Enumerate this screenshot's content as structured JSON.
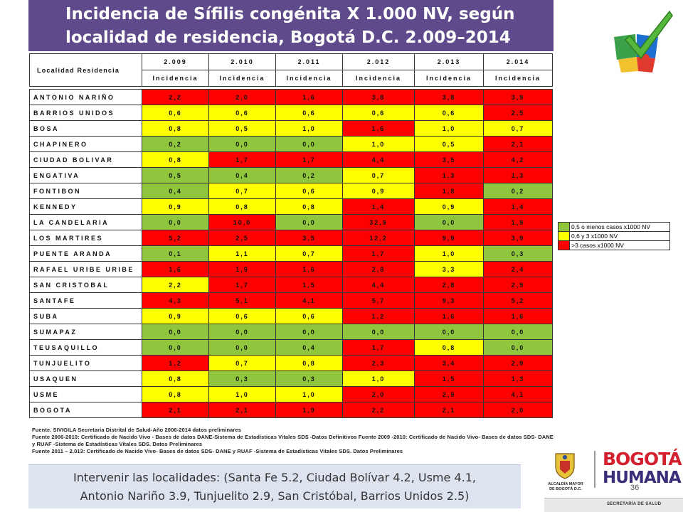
{
  "title": {
    "line1": "Incidencia de Sífilis congénita X 1.000 NV, según",
    "line2": "localidad de residencia, Bogotá D.C. 2.009–2014"
  },
  "colors": {
    "green": "#8fc63e",
    "yellow": "#ffff00",
    "red": "#ff0000",
    "title_bg": "#5f4b8b"
  },
  "icons": [
    "puzzle-check-icon",
    "bogota-crest-icon"
  ],
  "table": {
    "corner_header": "Localidad Residencia",
    "years": [
      "2.009",
      "2.010",
      "2.011",
      "2.012",
      "2.013",
      "2.014"
    ],
    "subheader": "Incidencia",
    "rows": [
      {
        "name": "ANTONIO NARIÑO",
        "values": [
          "2,2",
          "2,0",
          "1,6",
          "3,8",
          "3,8",
          "3,9"
        ],
        "levels": [
          "r",
          "r",
          "r",
          "r",
          "r",
          "r"
        ]
      },
      {
        "name": "BARRIOS UNIDOS",
        "values": [
          "0,6",
          "0,6",
          "0,6",
          "0,6",
          "0,6",
          "2,5"
        ],
        "levels": [
          "y",
          "y",
          "y",
          "y",
          "y",
          "r"
        ]
      },
      {
        "name": "BOSA",
        "values": [
          "0,8",
          "0,5",
          "1,0",
          "1,6",
          "1,0",
          "0,7"
        ],
        "levels": [
          "y",
          "y",
          "y",
          "r",
          "y",
          "y"
        ]
      },
      {
        "name": "CHAPINERO",
        "values": [
          "0,2",
          "0,0",
          "0,0",
          "1,0",
          "0,5",
          "2,1"
        ],
        "levels": [
          "g",
          "g",
          "g",
          "y",
          "y",
          "r"
        ]
      },
      {
        "name": "CIUDAD BOLIVAR",
        "values": [
          "0,8",
          "1,7",
          "1,7",
          "4,4",
          "3,5",
          "4,2"
        ],
        "levels": [
          "y",
          "r",
          "r",
          "r",
          "r",
          "r"
        ]
      },
      {
        "name": "ENGATIVA",
        "values": [
          "0,5",
          "0,4",
          "0,2",
          "0,7",
          "1,3",
          "1,3"
        ],
        "levels": [
          "g",
          "g",
          "g",
          "y",
          "r",
          "r"
        ]
      },
      {
        "name": "FONTIBON",
        "values": [
          "0,4",
          "0,7",
          "0,6",
          "0,9",
          "1,8",
          "0,2"
        ],
        "levels": [
          "g",
          "y",
          "y",
          "y",
          "r",
          "g"
        ]
      },
      {
        "name": "KENNEDY",
        "values": [
          "0,9",
          "0,8",
          "0,8",
          "1,4",
          "0,9",
          "1,4"
        ],
        "levels": [
          "y",
          "y",
          "y",
          "r",
          "y",
          "r"
        ]
      },
      {
        "name": "LA CANDELARIA",
        "values": [
          "0,0",
          "10,0",
          "0,0",
          "32,9",
          "0,0",
          "1,9"
        ],
        "levels": [
          "g",
          "r",
          "g",
          "r",
          "g",
          "r"
        ]
      },
      {
        "name": "LOS MARTIRES",
        "values": [
          "5,2",
          "2,5",
          "3,5",
          "12,2",
          "9,9",
          "3,9"
        ],
        "levels": [
          "r",
          "r",
          "r",
          "r",
          "r",
          "r"
        ]
      },
      {
        "name": "PUENTE ARANDA",
        "values": [
          "0,1",
          "1,1",
          "0,7",
          "1,7",
          "1,0",
          "0,3"
        ],
        "levels": [
          "g",
          "y",
          "y",
          "r",
          "y",
          "g"
        ]
      },
      {
        "name": "RAFAEL URIBE URIBE",
        "values": [
          "1,6",
          "1,9",
          "1,6",
          "2,8",
          "3,3",
          "2,4"
        ],
        "levels": [
          "r",
          "r",
          "r",
          "r",
          "y",
          "r"
        ]
      },
      {
        "name": "SAN CRISTOBAL",
        "values": [
          "2,2",
          "1,7",
          "1,5",
          "4,4",
          "2,8",
          "2,9"
        ],
        "levels": [
          "y",
          "r",
          "r",
          "r",
          "r",
          "r"
        ]
      },
      {
        "name": "SANTAFE",
        "values": [
          "4,3",
          "5,1",
          "4,1",
          "5,7",
          "9,3",
          "5,2"
        ],
        "levels": [
          "r",
          "r",
          "r",
          "r",
          "r",
          "r"
        ]
      },
      {
        "name": "SUBA",
        "values": [
          "0,9",
          "0,6",
          "0,6",
          "1,2",
          "1,6",
          "1,6"
        ],
        "levels": [
          "y",
          "y",
          "y",
          "r",
          "r",
          "r"
        ]
      },
      {
        "name": "SUMAPAZ",
        "values": [
          "0,0",
          "0,0",
          "0,0",
          "0,0",
          "0,0",
          "0,0"
        ],
        "levels": [
          "g",
          "g",
          "g",
          "g",
          "g",
          "g"
        ]
      },
      {
        "name": "TEUSAQUILLO",
        "values": [
          "0,0",
          "0,0",
          "0,4",
          "1,7",
          "0,8",
          "0,0"
        ],
        "levels": [
          "g",
          "g",
          "g",
          "r",
          "y",
          "g"
        ]
      },
      {
        "name": "TUNJUELITO",
        "values": [
          "1,2",
          "0,7",
          "0,8",
          "2,3",
          "3,4",
          "2,9"
        ],
        "levels": [
          "r",
          "y",
          "y",
          "r",
          "r",
          "r"
        ]
      },
      {
        "name": "USAQUEN",
        "values": [
          "0,8",
          "0,3",
          "0,3",
          "1,0",
          "1,5",
          "1,3"
        ],
        "levels": [
          "y",
          "g",
          "g",
          "y",
          "r",
          "r"
        ]
      },
      {
        "name": "USME",
        "values": [
          "0,8",
          "1,0",
          "1,0",
          "2,0",
          "2,9",
          "4,1"
        ],
        "levels": [
          "y",
          "y",
          "y",
          "r",
          "r",
          "r"
        ]
      },
      {
        "name": "BOGOTA",
        "values": [
          "2,1",
          "2,1",
          "1,9",
          "2,2",
          "2,1",
          "2,0"
        ],
        "levels": [
          "r",
          "r",
          "r",
          "r",
          "r",
          "r"
        ]
      }
    ]
  },
  "legend": [
    {
      "label": "0,5 o menos casos x1000 NV",
      "level": "g"
    },
    {
      "label": "0,6 y 3 x1000 NV",
      "level": "y"
    },
    {
      "label": ">3 casos x1000 NV",
      "level": "r"
    }
  ],
  "sources": [
    "Fuente. SIVIGILA Secretaria Distrital de Salud-Año 2006-2014 datos preliminares",
    " Fuente 2006-2010: Certificado de Nacido Vivo - Bases de datos DANE-Sistema de Estadísticas Vitales SDS -Datos Definitivos  Fuente 2009 -2010: Certificado de Nacido Vivo- Bases de datos SDS- DANE",
    "y RUAF -Sistema de Estadísticas Vitales SDS.  Datos  Preliminares",
    " Fuente 2011 – 2.013: Certificado de Nacido Vivo- Bases de datos SDS- DANE y RUAF -Sistema de Estadísticas Vitales SDS. Datos Preliminares"
  ],
  "conclusion": {
    "line1": "Intervenir las localidades: (Santa Fe 5.2, Ciudad Bolívar 4.2, Usme 4.1,",
    "line2": "Antonio Nariño 3.9,  Tunjuelito 2.9, San Cristóbal, Barrios Unidos 2.5)"
  },
  "page_number": "36",
  "logos": {
    "alcaldia_line1": "ALCALDÍA MAYOR",
    "alcaldia_line2": "DE BOGOTÁ D.C.",
    "brand_top": "BOGOTÁ",
    "brand_bottom": "HUMANA",
    "secretaria": "SECRETARÍA DE SALUD"
  }
}
